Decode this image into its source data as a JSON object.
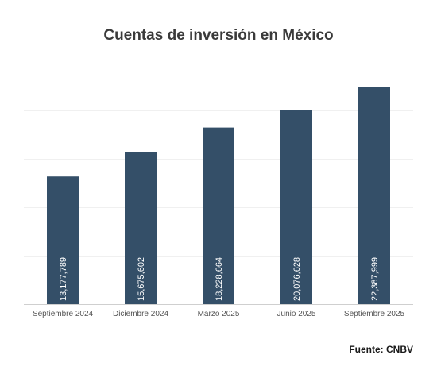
{
  "chart_data": {
    "type": "bar",
    "title": "Cuentas de inversión en México",
    "categories": [
      "Septiembre 2024",
      "Diciembre 2024",
      "Marzo 2025",
      "Junio 2025",
      "Septiembre 2025"
    ],
    "values": [
      13177789,
      15675602,
      18228664,
      20076628,
      22387999
    ],
    "value_labels": [
      "13,177,789",
      "15,675,602",
      "18,228,664",
      "20,076,628",
      "22,387,999"
    ],
    "xlabel": "",
    "ylabel": "",
    "ylim": [
      0,
      25000000
    ],
    "grid": true,
    "legend": "none",
    "bar_color": "#344f68"
  },
  "source": "Fuente: CNBV"
}
